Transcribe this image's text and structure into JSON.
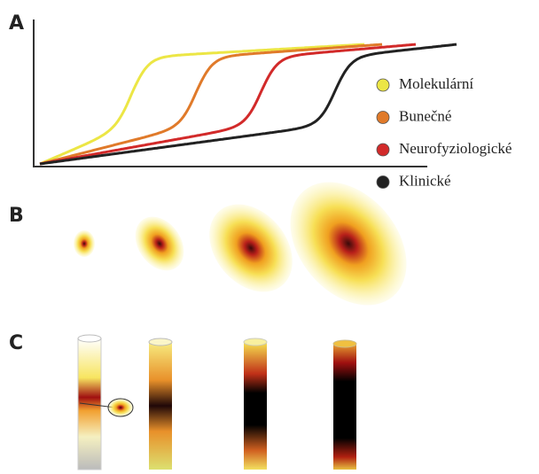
{
  "panels": [
    {
      "label": "A"
    },
    {
      "label": "B"
    },
    {
      "label": "C"
    }
  ],
  "legend": [
    {
      "label": "Molekulární",
      "color": "#ece645"
    },
    {
      "label": "Bunečné",
      "color": "#e07a2a"
    },
    {
      "label": "Neurofyziologické",
      "color": "#d22a2a"
    },
    {
      "label": "Klinické",
      "color": "#222222"
    }
  ]
}
